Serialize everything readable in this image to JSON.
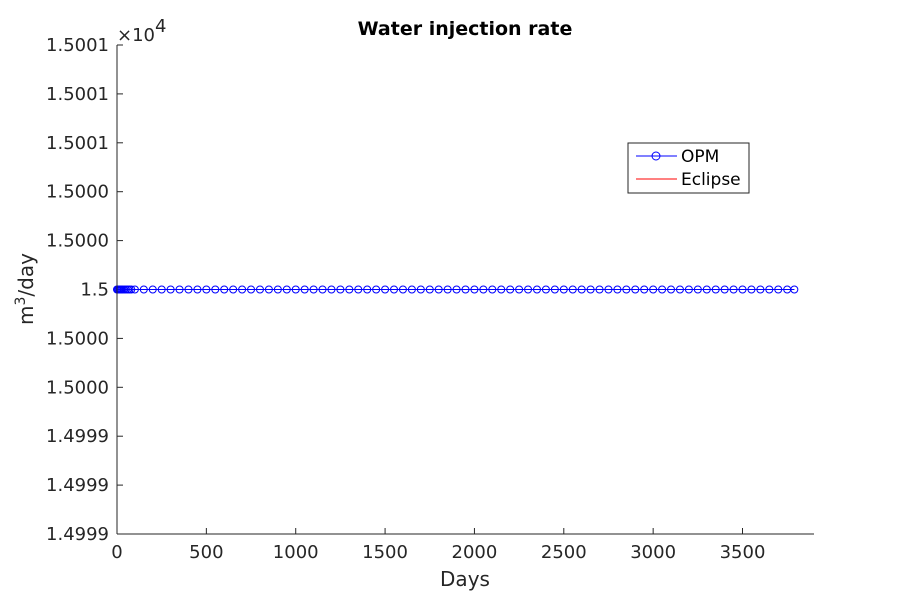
{
  "chart_data": {
    "type": "line",
    "title": "Water injection rate",
    "xlabel": "Days",
    "ylabel_base": "m",
    "ylabel_sup": "3",
    "ylabel_rest": "/day",
    "exponent_prefix": "×10",
    "exponent_power": "4",
    "xlim": [
      0,
      3900
    ],
    "ylim": [
      14999,
      15001
    ],
    "x_ticks": [
      0,
      500,
      1000,
      1500,
      2000,
      2500,
      3000,
      3500
    ],
    "x_tick_labels": [
      "0",
      "500",
      "1000",
      "1500",
      "2000",
      "2500",
      "3000",
      "3500"
    ],
    "y_ticks": [
      14999,
      14999.2,
      14999.4,
      14999.6,
      14999.8,
      15000,
      15000.2,
      15000.4,
      15000.6,
      15000.8,
      15001
    ],
    "y_tick_labels": [
      "1.4999",
      "1.4999",
      "1.4999",
      "1.5000",
      "1.5000",
      "1.5",
      "1.5000",
      "1.5000",
      "1.5001",
      "1.5001",
      "1.5001"
    ],
    "legend_position": "upper right inside",
    "series": [
      {
        "name": "OPM",
        "color": "#0000ff",
        "marker": "circle",
        "x": [
          0,
          5,
          10,
          15,
          20,
          25,
          31,
          40,
          50,
          60,
          70,
          80,
          100,
          150,
          200,
          250,
          300,
          350,
          400,
          450,
          500,
          550,
          600,
          650,
          700,
          750,
          800,
          850,
          900,
          950,
          1000,
          1050,
          1100,
          1150,
          1200,
          1250,
          1300,
          1350,
          1400,
          1450,
          1500,
          1550,
          1600,
          1650,
          1700,
          1750,
          1800,
          1850,
          1900,
          1950,
          2000,
          2050,
          2100,
          2150,
          2200,
          2250,
          2300,
          2350,
          2400,
          2450,
          2500,
          2550,
          2600,
          2650,
          2700,
          2750,
          2800,
          2850,
          2900,
          2950,
          3000,
          3050,
          3100,
          3150,
          3200,
          3250,
          3300,
          3350,
          3400,
          3450,
          3500,
          3550,
          3600,
          3650,
          3700,
          3750,
          3790
        ],
        "y_constant": 15000
      },
      {
        "name": "Eclipse",
        "color": "#ff0000",
        "marker": "none",
        "x": [
          0,
          3790
        ],
        "y_constant": 15000
      }
    ]
  }
}
